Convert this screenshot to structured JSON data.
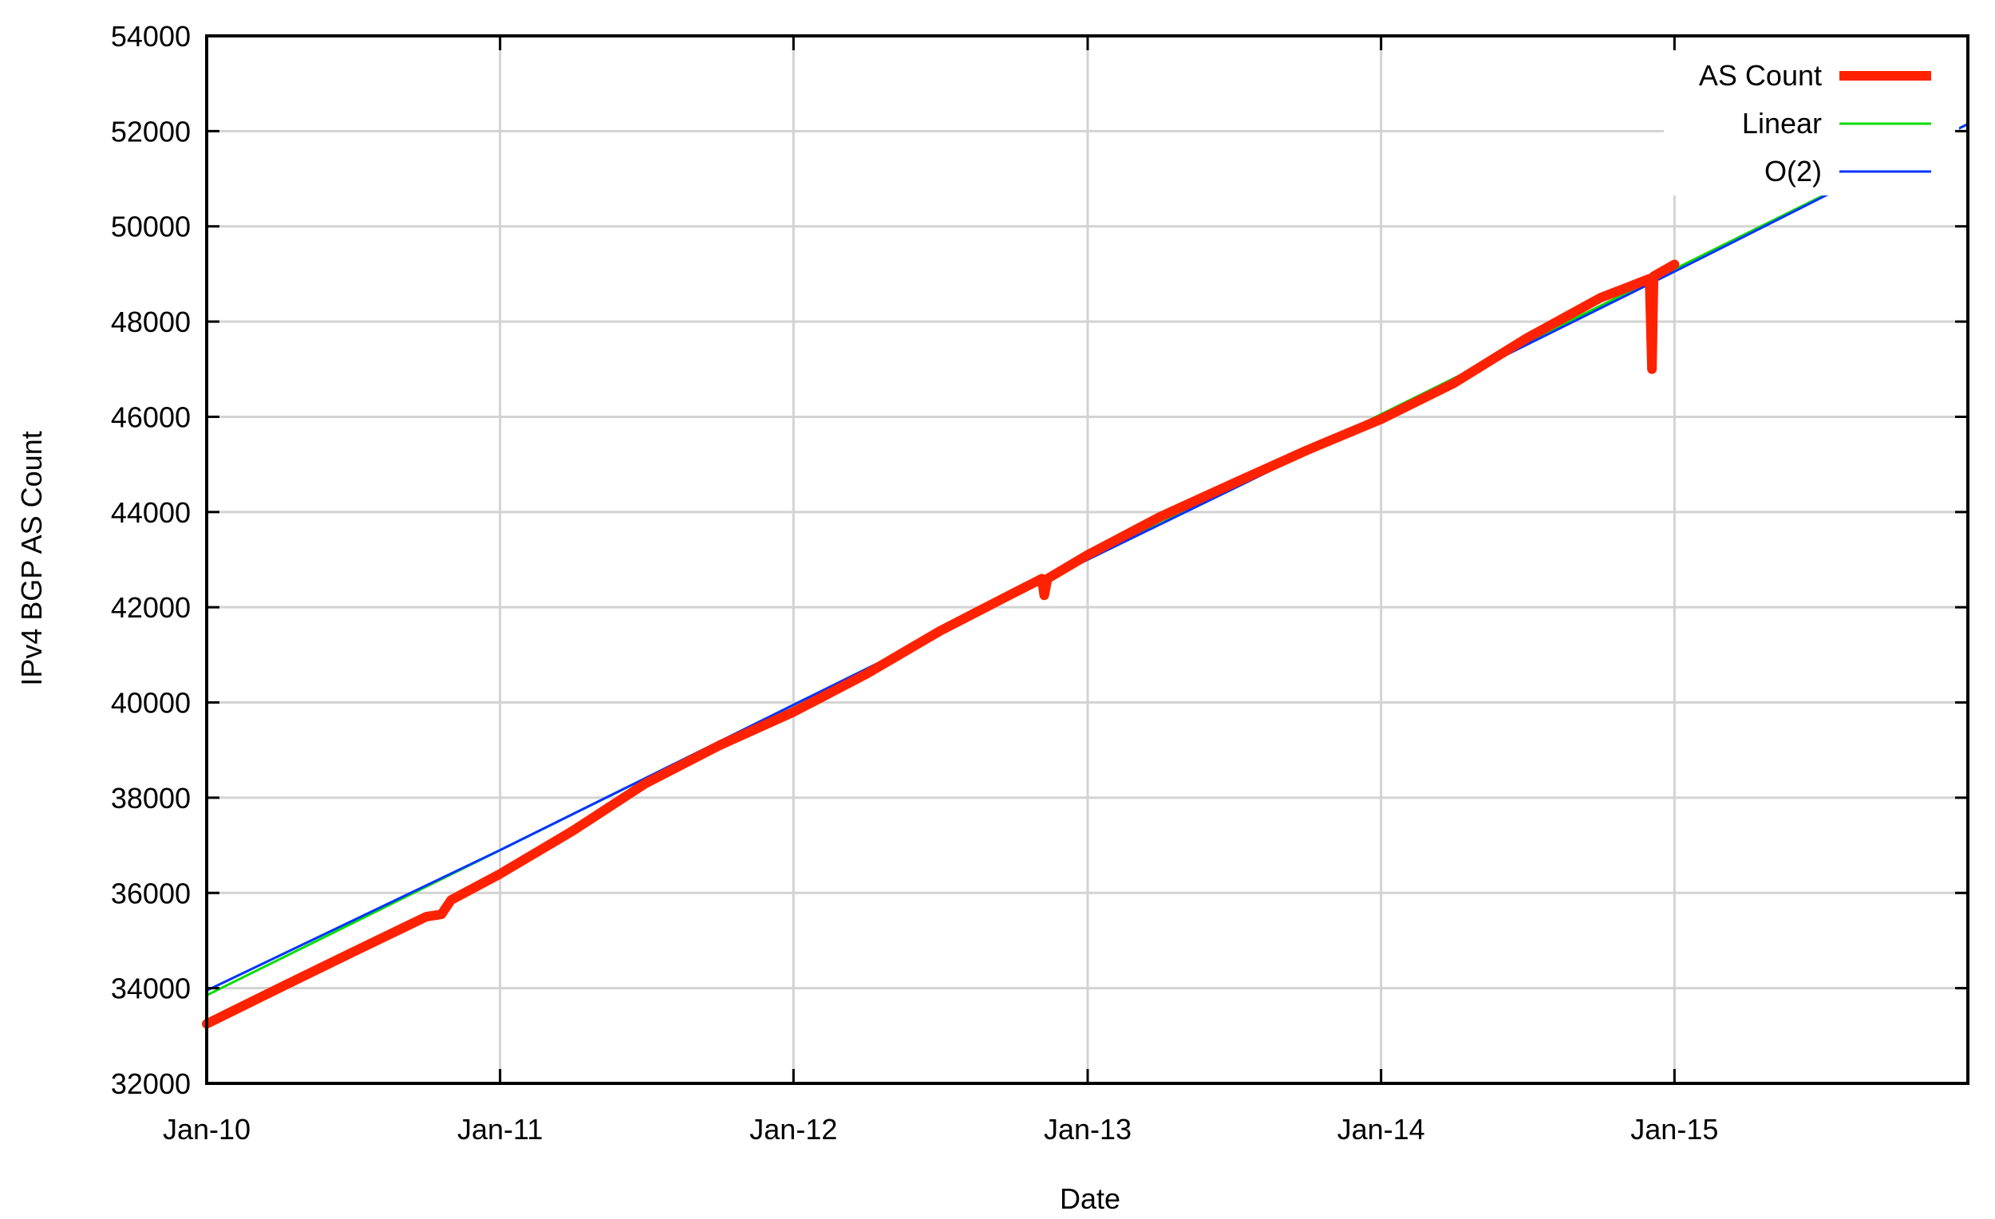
{
  "chart_data": {
    "type": "line",
    "title": "",
    "xlabel": "Date",
    "ylabel": "IPv4 BGP AS Count",
    "xlim": [
      "2010-01-01",
      "2016-01-01"
    ],
    "ylim": [
      32000,
      54000
    ],
    "grid": true,
    "legend_position": "top-right",
    "x_ticks": [
      {
        "date": "2010-01-01",
        "label": "Jan-10"
      },
      {
        "date": "2011-01-01",
        "label": "Jan-11"
      },
      {
        "date": "2012-01-01",
        "label": "Jan-12"
      },
      {
        "date": "2013-01-01",
        "label": "Jan-13"
      },
      {
        "date": "2014-01-01",
        "label": "Jan-14"
      },
      {
        "date": "2015-01-01",
        "label": "Jan-15"
      }
    ],
    "y_ticks": [
      32000,
      34000,
      36000,
      38000,
      40000,
      42000,
      44000,
      46000,
      48000,
      50000,
      52000,
      54000
    ],
    "series": [
      {
        "name": "AS Count",
        "color": "#ff2200",
        "width": "thick",
        "points": [
          [
            "2010-01-01",
            33250
          ],
          [
            "2010-04-01",
            34000
          ],
          [
            "2010-07-01",
            34750
          ],
          [
            "2010-10-01",
            35500
          ],
          [
            "2010-10-20",
            35550
          ],
          [
            "2010-11-01",
            35850
          ],
          [
            "2011-01-01",
            36400
          ],
          [
            "2011-04-01",
            37300
          ],
          [
            "2011-07-01",
            38300
          ],
          [
            "2011-10-01",
            39100
          ],
          [
            "2012-01-01",
            39800
          ],
          [
            "2012-04-01",
            40600
          ],
          [
            "2012-07-01",
            41500
          ],
          [
            "2012-10-01",
            42300
          ],
          [
            "2012-11-05",
            42600
          ],
          [
            "2012-11-08",
            42250
          ],
          [
            "2012-11-12",
            42600
          ],
          [
            "2013-01-01",
            43100
          ],
          [
            "2013-04-01",
            43900
          ],
          [
            "2013-07-01",
            44600
          ],
          [
            "2013-10-01",
            45300
          ],
          [
            "2014-01-01",
            45950
          ],
          [
            "2014-04-01",
            46700
          ],
          [
            "2014-07-01",
            47650
          ],
          [
            "2014-10-01",
            48500
          ],
          [
            "2014-12-01",
            48900
          ],
          [
            "2014-12-04",
            47000
          ],
          [
            "2014-12-06",
            48950
          ],
          [
            "2015-01-01",
            49200
          ]
        ]
      },
      {
        "name": "Linear",
        "color": "#00dd00",
        "width": "thin",
        "points": [
          [
            "2010-01-01",
            33850
          ],
          [
            "2016-01-01",
            52150
          ]
        ]
      },
      {
        "name": "O(2)",
        "color": "#0033ff",
        "width": "thin",
        "points": [
          [
            "2010-01-01",
            33950
          ],
          [
            "2011-01-01",
            36900
          ],
          [
            "2012-01-01",
            39950
          ],
          [
            "2013-01-01",
            43000
          ],
          [
            "2014-01-01",
            46000
          ],
          [
            "2015-01-01",
            49050
          ],
          [
            "2016-01-01",
            52150
          ]
        ]
      }
    ]
  }
}
